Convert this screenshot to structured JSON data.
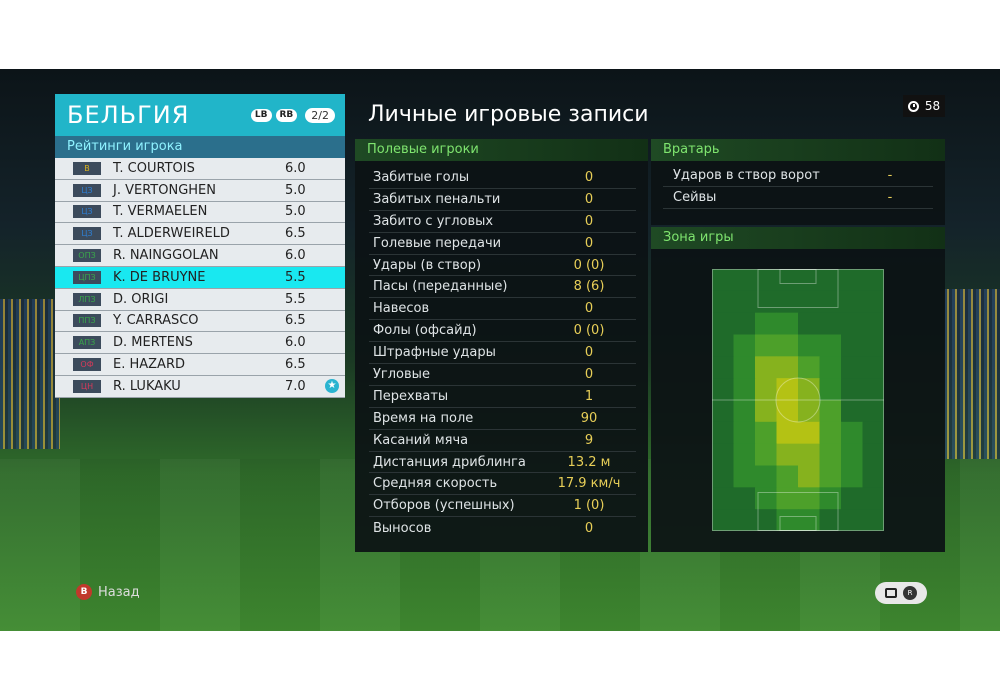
{
  "team": {
    "name": "БЕЛЬГИЯ",
    "lb_label": "LB",
    "rb_label": "RB",
    "page": "2/2"
  },
  "ratings_title": "Рейтинги игрока",
  "players": [
    {
      "pos": "В",
      "pos_color": "#d9b21e",
      "name": "T. COURTOIS",
      "rating": "6.0",
      "selected": false,
      "star": false
    },
    {
      "pos": "ЦЗ",
      "pos_color": "#2f7ed1",
      "name": "J. VERTONGHEN",
      "rating": "5.0",
      "selected": false,
      "star": false
    },
    {
      "pos": "ЦЗ",
      "pos_color": "#2f7ed1",
      "name": "T. VERMAELEN",
      "rating": "5.0",
      "selected": false,
      "star": false
    },
    {
      "pos": "ЦЗ",
      "pos_color": "#2f7ed1",
      "name": "T. ALDERWEIRELD",
      "rating": "6.5",
      "selected": false,
      "star": false
    },
    {
      "pos": "ОПЗ",
      "pos_color": "#3aa64b",
      "name": "R. NAINGGOLAN",
      "rating": "6.0",
      "selected": false,
      "star": false
    },
    {
      "pos": "ЦПЗ",
      "pos_color": "#3aa64b",
      "name": "K. DE BRUYNE",
      "rating": "5.5",
      "selected": true,
      "star": false
    },
    {
      "pos": "ЛПЗ",
      "pos_color": "#3aa64b",
      "name": "D. ORIGI",
      "rating": "5.5",
      "selected": false,
      "star": false
    },
    {
      "pos": "ППЗ",
      "pos_color": "#3aa64b",
      "name": "Y. CARRASCO",
      "rating": "6.5",
      "selected": false,
      "star": false
    },
    {
      "pos": "АПЗ",
      "pos_color": "#3aa64b",
      "name": "D. MERTENS",
      "rating": "6.0",
      "selected": false,
      "star": false
    },
    {
      "pos": "ОФ",
      "pos_color": "#d63a5a",
      "name": "E. HAZARD",
      "rating": "6.5",
      "selected": false,
      "star": false
    },
    {
      "pos": "ЦН",
      "pos_color": "#d63a5a",
      "name": "R. LUKAKU",
      "rating": "7.0",
      "selected": false,
      "star": true
    }
  ],
  "title": "Личные игровые записи",
  "timer": "58",
  "field_players": {
    "header": "Полевые игроки",
    "stats": [
      {
        "label": "Забитые голы",
        "value": "0"
      },
      {
        "label": "Забитых пенальти",
        "value": "0"
      },
      {
        "label": "Забито с угловых",
        "value": "0"
      },
      {
        "label": "Голевые передачи",
        "value": "0"
      },
      {
        "label": "Удары (в створ)",
        "value": "0 (0)"
      },
      {
        "label": "Пасы (переданные)",
        "value": "8 (6)"
      },
      {
        "label": "Навесов",
        "value": "0"
      },
      {
        "label": "Фолы (офсайд)",
        "value": "0 (0)"
      },
      {
        "label": "Штрафные удары",
        "value": "0"
      },
      {
        "label": "Угловые",
        "value": "0"
      },
      {
        "label": "Перехваты",
        "value": "1"
      },
      {
        "label": "Время на поле",
        "value": "90"
      },
      {
        "label": "Касаний мяча",
        "value": "9"
      },
      {
        "label": "Дистанция дриблинга",
        "value": "13.2 м"
      },
      {
        "label": "Средняя скорость",
        "value": "17.9 км/ч"
      },
      {
        "label": "Отборов (успешных)",
        "value": "1 (0)"
      },
      {
        "label": "Выносов",
        "value": "0"
      }
    ]
  },
  "goalkeeper": {
    "header": "Вратарь",
    "stats": [
      {
        "label": "Ударов в створ ворот",
        "value": "-"
      },
      {
        "label": "Сейвы",
        "value": "-"
      }
    ]
  },
  "zone": {
    "header": "Зона игры",
    "heatmap": [
      [
        0,
        0,
        0,
        0,
        0,
        0,
        0,
        0
      ],
      [
        0,
        0,
        0,
        0,
        0,
        0,
        0,
        0
      ],
      [
        0,
        0,
        1,
        1,
        0,
        0,
        0,
        0
      ],
      [
        0,
        1,
        2,
        2,
        1,
        1,
        0,
        0
      ],
      [
        0,
        1,
        3,
        3,
        2,
        1,
        0,
        0
      ],
      [
        0,
        1,
        3,
        4,
        3,
        1,
        0,
        0
      ],
      [
        0,
        1,
        3,
        4,
        3,
        2,
        0,
        0
      ],
      [
        0,
        1,
        2,
        4,
        4,
        2,
        1,
        0
      ],
      [
        0,
        1,
        2,
        3,
        3,
        2,
        1,
        0
      ],
      [
        0,
        1,
        1,
        2,
        3,
        2,
        1,
        0
      ],
      [
        0,
        0,
        1,
        2,
        2,
        1,
        0,
        0
      ],
      [
        0,
        0,
        0,
        1,
        1,
        0,
        0,
        0
      ]
    ],
    "heat_colors": [
      "#1f6b2a",
      "#2f8a2c",
      "#4da02a",
      "#86b21e",
      "#b4c214"
    ]
  },
  "back_label": "Назад",
  "back_btn": "B",
  "rs_label": "R"
}
